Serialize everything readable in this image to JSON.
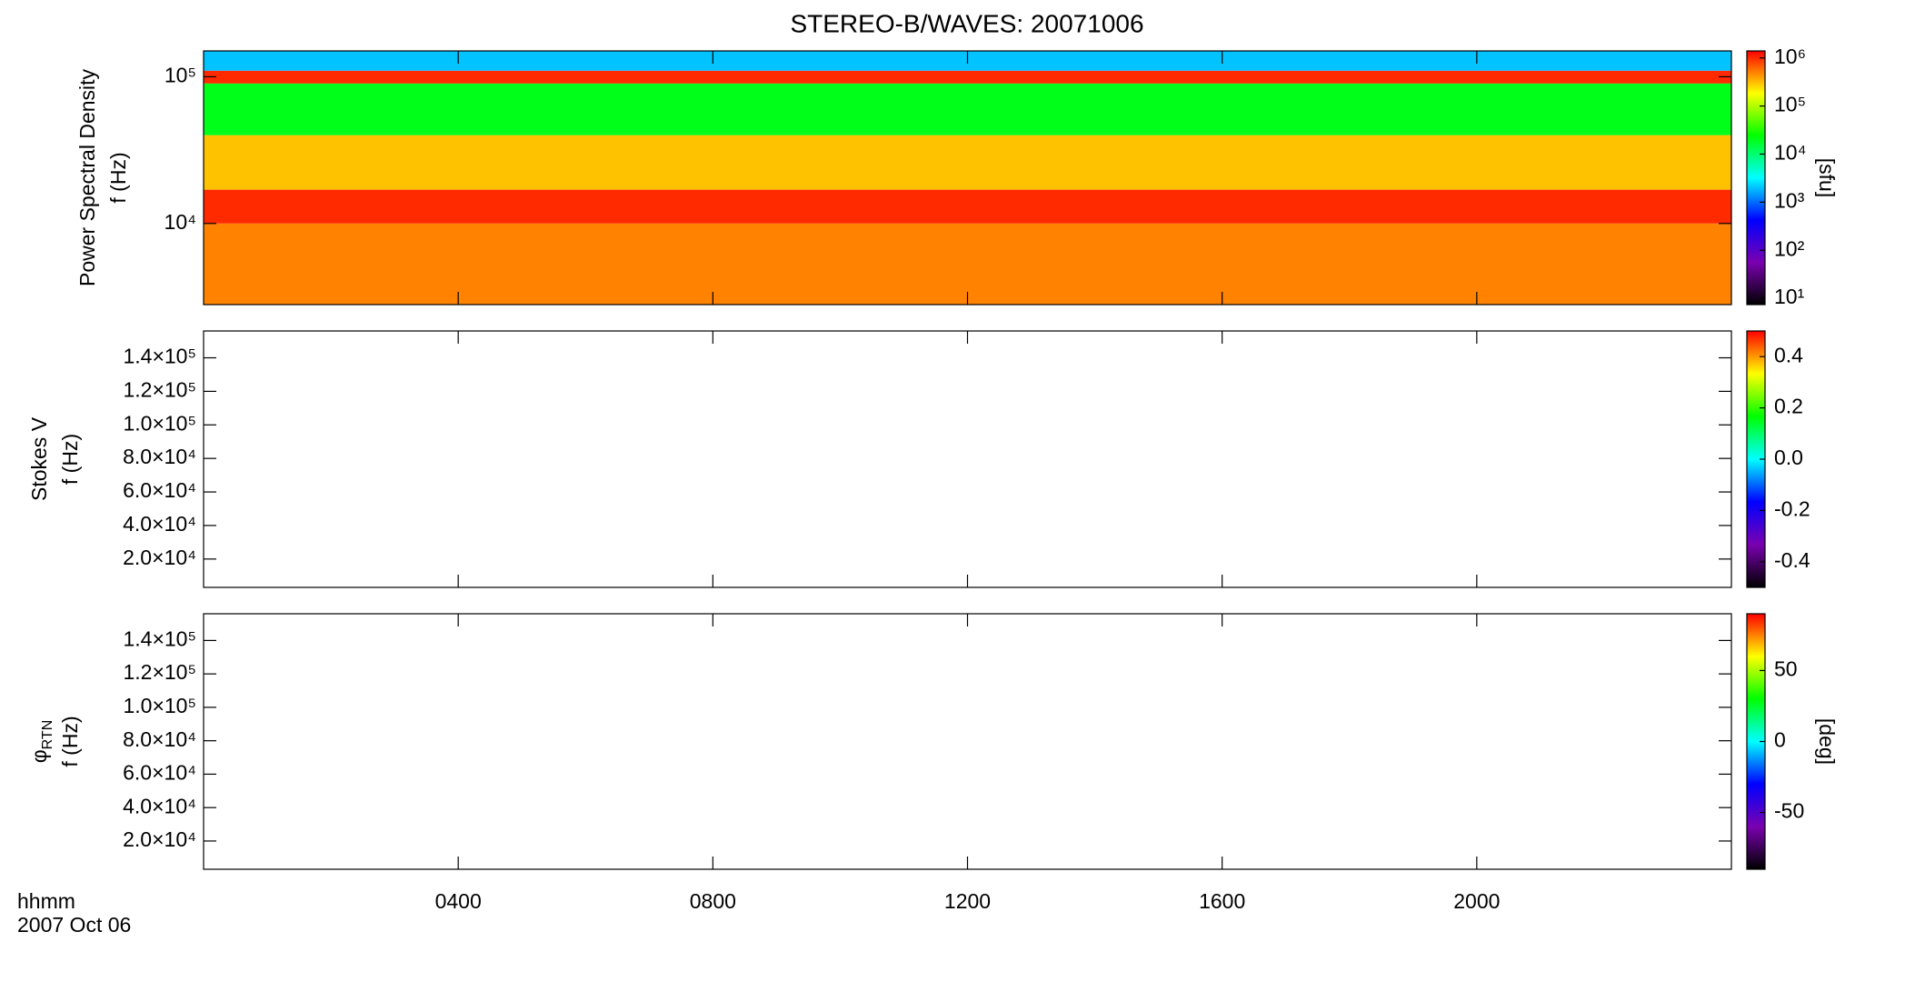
{
  "title": "STEREO-B/WAVES: 20071006",
  "x_axis": {
    "label": "hhmm",
    "date": "2007 Oct 06",
    "xlim": [
      0,
      24
    ],
    "xticks": [
      {
        "value": 4,
        "label": "0400"
      },
      {
        "value": 8,
        "label": "0800"
      },
      {
        "value": 12,
        "label": "1200"
      },
      {
        "value": 16,
        "label": "1600"
      },
      {
        "value": 20,
        "label": "2000"
      }
    ]
  },
  "colormap": [
    "#000000",
    "#7a00b0",
    "#0000ff",
    "#00ffff",
    "#00ff00",
    "#ffff00",
    "#ff0000"
  ],
  "chart_data": [
    {
      "type": "heatmap",
      "quantity": "Power Spectral Density",
      "ylabel": "f (Hz)",
      "log_y": true,
      "ylim": [
        2800,
        150000
      ],
      "yticks": [
        {
          "value": 10000,
          "label": "10⁴"
        },
        {
          "value": 100000,
          "label": "10⁵"
        }
      ],
      "y_bands": [
        2800,
        10000,
        17000,
        40000,
        90000,
        110000,
        150000
      ],
      "values": [
        500000,
        1000000,
        300000,
        20000,
        1000000,
        2000
      ],
      "colorbar": {
        "log": true,
        "clim": [
          7.4,
          1400000
        ],
        "label": "[sfu]",
        "ticks": [
          {
            "value": 10,
            "label": "10¹"
          },
          {
            "value": 100,
            "label": "10²"
          },
          {
            "value": 1000,
            "label": "10³"
          },
          {
            "value": 10000,
            "label": "10⁴"
          },
          {
            "value": 100000,
            "label": "10⁵"
          },
          {
            "value": 1000000,
            "label": "10⁶"
          }
        ]
      }
    },
    {
      "type": "heatmap",
      "quantity": "Stokes V",
      "ylabel": "f (Hz)",
      "log_y": false,
      "ylim": [
        3100,
        156000
      ],
      "yticks": [
        {
          "value": 20000,
          "label": "2.0×10⁴"
        },
        {
          "value": 40000,
          "label": "4.0×10⁴"
        },
        {
          "value": 60000,
          "label": "6.0×10⁴"
        },
        {
          "value": 80000,
          "label": "8.0×10⁴"
        },
        {
          "value": 100000,
          "label": "1.0×10⁵"
        },
        {
          "value": 120000,
          "label": "1.2×10⁵"
        },
        {
          "value": 140000,
          "label": "1.4×10⁵"
        }
      ],
      "colorbar": {
        "log": false,
        "clim": [
          -0.5,
          0.5
        ],
        "ticks": [
          -0.4,
          -0.2,
          {
            "value": 0,
            "label": "0.0"
          },
          0.2,
          0.4
        ]
      }
    },
    {
      "type": "heatmap",
      "quantity": {
        "symbol": "φ",
        "subscript": "RTN"
      },
      "ylabel": "f (Hz)",
      "log_y": false,
      "ylim": [
        3100,
        156000
      ],
      "yticks": [
        {
          "value": 20000,
          "label": "2.0×10⁴"
        },
        {
          "value": 40000,
          "label": "4.0×10⁴"
        },
        {
          "value": 60000,
          "label": "6.0×10⁴"
        },
        {
          "value": 80000,
          "label": "8.0×10⁴"
        },
        {
          "value": 100000,
          "label": "1.0×10⁵"
        },
        {
          "value": 120000,
          "label": "1.2×10⁵"
        },
        {
          "value": 140000,
          "label": "1.4×10⁵"
        }
      ],
      "colorbar": {
        "log": false,
        "clim": [
          -90,
          90
        ],
        "label": "[deg]",
        "ticks": [
          -50,
          0,
          50
        ]
      }
    }
  ]
}
